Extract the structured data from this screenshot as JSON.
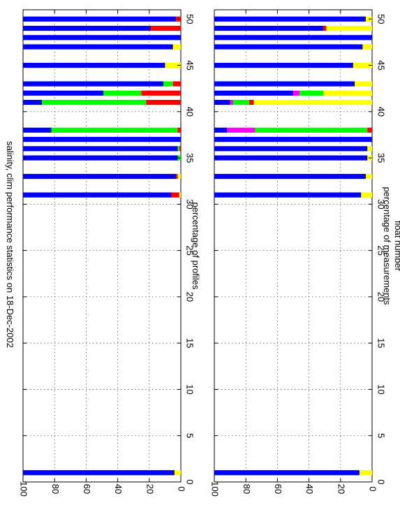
{
  "title": "salinity, clim performance statistics on 18-Dec-2002",
  "colors": {
    "blue": "#0000ff",
    "yellow": "#ffff00",
    "green": "#00ff00",
    "red": "#ff0000",
    "magenta": "#ff00ff"
  },
  "chart_data": [
    {
      "type": "bar",
      "orientation": "horizontal-stacked",
      "rotated": "page rotated 90 degrees",
      "xlabel": "",
      "ylabel": "percentage of profiles",
      "xlim": [
        0,
        51
      ],
      "ylim": [
        0,
        100
      ],
      "x_ticks": [
        0,
        5,
        10,
        15,
        20,
        25,
        30,
        35,
        40,
        45,
        50
      ],
      "y_ticks": [
        0,
        20,
        40,
        60,
        80,
        100
      ],
      "grid": true,
      "stack_order": [
        "yellow",
        "red",
        "green",
        "magenta",
        "blue"
      ],
      "floats": [
        {
          "x": 1,
          "yellow": 4,
          "red": 0,
          "green": 0,
          "magenta": 0,
          "blue": 96
        },
        {
          "x": 31,
          "yellow": 1,
          "red": 5,
          "green": 0,
          "magenta": 0,
          "blue": 94
        },
        {
          "x": 33,
          "yellow": 2,
          "red": 1,
          "green": 0,
          "magenta": 0,
          "blue": 97
        },
        {
          "x": 35,
          "yellow": 0,
          "red": 0,
          "green": 2,
          "magenta": 0,
          "blue": 98
        },
        {
          "x": 36,
          "yellow": 0,
          "red": 1,
          "green": 1,
          "magenta": 0,
          "blue": 98
        },
        {
          "x": 37,
          "yellow": 0,
          "red": 0,
          "green": 0,
          "magenta": 0,
          "blue": 100
        },
        {
          "x": 38,
          "yellow": 0,
          "red": 2,
          "green": 80,
          "magenta": 0,
          "blue": 18
        },
        {
          "x": 41,
          "yellow": 0,
          "red": 22,
          "green": 66,
          "magenta": 0,
          "blue": 12
        },
        {
          "x": 42,
          "yellow": 0,
          "red": 25,
          "green": 24,
          "magenta": 0,
          "blue": 51
        },
        {
          "x": 43,
          "yellow": 0,
          "red": 5,
          "green": 6,
          "magenta": 0,
          "blue": 89
        },
        {
          "x": 45,
          "yellow": 10,
          "red": 0,
          "green": 0,
          "magenta": 0,
          "blue": 90
        },
        {
          "x": 47,
          "yellow": 5,
          "red": 0,
          "green": 0,
          "magenta": 0,
          "blue": 95
        },
        {
          "x": 48,
          "yellow": 0,
          "red": 0,
          "green": 0,
          "magenta": 0,
          "blue": 100
        },
        {
          "x": 49,
          "yellow": 0,
          "red": 19,
          "green": 0,
          "magenta": 0,
          "blue": 81
        },
        {
          "x": 50,
          "yellow": 0,
          "red": 3,
          "green": 0,
          "magenta": 0,
          "blue": 97
        }
      ]
    },
    {
      "type": "bar",
      "orientation": "horizontal-stacked",
      "rotated": "page rotated 90 degrees",
      "xlabel": "float number",
      "ylabel": "percentage of measurements",
      "xlim": [
        0,
        51
      ],
      "ylim": [
        0,
        100
      ],
      "x_ticks": [
        0,
        5,
        10,
        15,
        20,
        25,
        30,
        35,
        40,
        45,
        50
      ],
      "y_ticks": [
        0,
        20,
        40,
        60,
        80,
        100
      ],
      "grid": true,
      "stack_order": [
        "yellow",
        "red",
        "green",
        "magenta",
        "blue"
      ],
      "floats": [
        {
          "x": 1,
          "yellow": 8,
          "red": 0,
          "green": 0,
          "magenta": 0,
          "blue": 92
        },
        {
          "x": 31,
          "yellow": 7,
          "red": 0,
          "green": 0,
          "magenta": 0,
          "blue": 93
        },
        {
          "x": 33,
          "yellow": 4,
          "red": 0,
          "green": 0,
          "magenta": 0,
          "blue": 96
        },
        {
          "x": 35,
          "yellow": 3,
          "red": 0,
          "green": 0,
          "magenta": 0,
          "blue": 97
        },
        {
          "x": 36,
          "yellow": 3,
          "red": 0,
          "green": 0,
          "magenta": 0,
          "blue": 97
        },
        {
          "x": 37,
          "yellow": 0,
          "red": 0,
          "green": 0,
          "magenta": 0,
          "blue": 100
        },
        {
          "x": 38,
          "yellow": 0,
          "red": 3,
          "green": 71,
          "magenta": 18,
          "blue": 8
        },
        {
          "x": 41,
          "yellow": 75,
          "red": 3,
          "green": 10,
          "magenta": 2,
          "blue": 10
        },
        {
          "x": 42,
          "yellow": 31,
          "red": 0,
          "green": 15,
          "magenta": 4,
          "blue": 50
        },
        {
          "x": 43,
          "yellow": 11,
          "red": 0,
          "green": 0,
          "magenta": 0,
          "blue": 89
        },
        {
          "x": 45,
          "yellow": 12,
          "red": 0,
          "green": 0,
          "magenta": 0,
          "blue": 88
        },
        {
          "x": 47,
          "yellow": 6,
          "red": 0,
          "green": 0,
          "magenta": 0,
          "blue": 94
        },
        {
          "x": 48,
          "yellow": 0,
          "red": 0,
          "green": 0,
          "magenta": 0,
          "blue": 100
        },
        {
          "x": 49,
          "yellow": 29,
          "red": 2,
          "green": 0,
          "magenta": 0,
          "blue": 69
        },
        {
          "x": 50,
          "yellow": 4,
          "red": 0,
          "green": 0,
          "magenta": 0,
          "blue": 96
        }
      ]
    }
  ]
}
